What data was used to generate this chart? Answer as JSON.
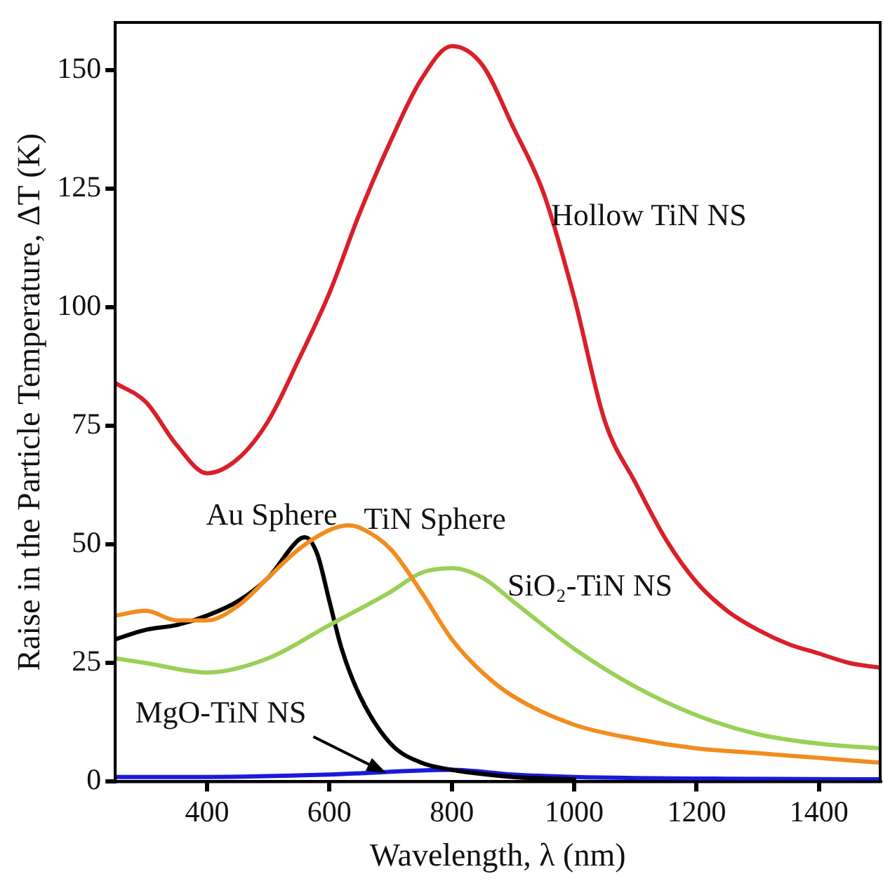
{
  "chart_data": {
    "type": "line",
    "xlabel": "Wavelength, λ (nm)",
    "ylabel": "Raise in the Particle Temperature, ΔT (K)",
    "xlim": [
      250,
      1500
    ],
    "xticks": [
      400,
      600,
      800,
      1000,
      1200,
      1400
    ],
    "ylim": [
      0,
      160
    ],
    "yticks": [
      0,
      25,
      50,
      75,
      100,
      125,
      150
    ],
    "grid": false,
    "legend": false,
    "marker": "none",
    "line_style": "solid",
    "series": [
      {
        "color": "#d9202a",
        "x": [
          250,
          300,
          350,
          400,
          450,
          500,
          550,
          600,
          650,
          700,
          750,
          800,
          850,
          900,
          950,
          1000,
          1050,
          1100,
          1150,
          1200,
          1250,
          1300,
          1350,
          1400,
          1450,
          1500
        ],
        "values": [
          84,
          80,
          71,
          65,
          68,
          76,
          89,
          103,
          120,
          135,
          148,
          155,
          151,
          138,
          124,
          102,
          76,
          63,
          51,
          42,
          36,
          32,
          29,
          27,
          25,
          24
        ]
      },
      {
        "color": "#f28c1e",
        "x": [
          250,
          300,
          350,
          400,
          450,
          500,
          550,
          600,
          630,
          650,
          700,
          750,
          800,
          850,
          900,
          1000,
          1100,
          1200,
          1300,
          1400,
          1500
        ],
        "values": [
          35,
          36,
          34,
          34,
          37,
          43,
          49,
          53,
          54,
          53.5,
          49,
          40,
          30,
          23,
          18,
          12,
          9,
          7,
          6,
          5,
          4
        ]
      },
      {
        "color": "#99d155",
        "x": [
          250,
          300,
          400,
          500,
          600,
          700,
          750,
          800,
          850,
          900,
          1000,
          1100,
          1200,
          1300,
          1400,
          1500
        ],
        "values": [
          26,
          25,
          23,
          26,
          33,
          40,
          44,
          45,
          43,
          38,
          28,
          20,
          14,
          10,
          8,
          7
        ]
      },
      {
        "color": "#000000",
        "x": [
          250,
          300,
          350,
          400,
          450,
          500,
          550,
          560,
          580,
          600,
          620,
          650,
          700,
          750,
          800,
          900,
          1000
        ],
        "values": [
          30,
          32,
          33,
          35,
          38,
          43,
          51,
          51.5,
          48,
          38,
          28,
          18,
          8,
          4,
          2.5,
          1,
          0.5
        ]
      },
      {
        "color": "#1a1adb",
        "x": [
          250,
          400,
          600,
          800,
          900,
          1000,
          1500
        ],
        "values": [
          1,
          1,
          1.5,
          2.5,
          1.5,
          1,
          0.5
        ]
      }
    ],
    "annotations": [
      {
        "text": "Hollow TiN NS",
        "x": 962,
        "y": 119
      },
      {
        "text": "Au Sphere",
        "x": 560,
        "y": 51.5
      },
      {
        "text": "TiN Sphere",
        "x": 656,
        "y": 55
      },
      {
        "text": "SiO₂-TiN NS",
        "x": 891,
        "y": 41
      },
      {
        "text": "MgO-TiN NS",
        "x": 693,
        "y": 1.8
      }
    ]
  }
}
